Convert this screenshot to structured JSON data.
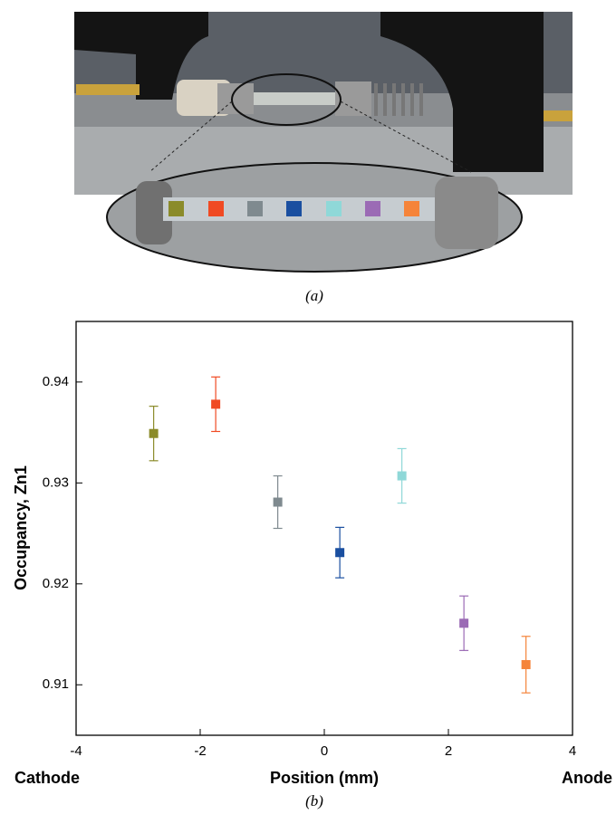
{
  "figure": {
    "panel_a": "(a)"
  },
  "chart_data": {
    "type": "scatter",
    "caption": "(b)",
    "x_label": "Position (mm)",
    "y_label": "Occupancy, Zn1",
    "annotations": [
      "Cathode",
      "Anode"
    ],
    "x": [
      -2.75,
      -1.75,
      -0.75,
      0.25,
      1.25,
      2.25,
      3.25
    ],
    "values": [
      0.9349,
      0.9378,
      0.9281,
      0.9231,
      0.9307,
      0.9161,
      0.912
    ],
    "errors": [
      0.0027,
      0.0027,
      0.0026,
      0.0025,
      0.0027,
      0.0027,
      0.0028
    ],
    "colors": [
      "#8b8b2a",
      "#f04a23",
      "#7f8a8f",
      "#1a4fa0",
      "#8fd8d8",
      "#9b6bb5",
      "#f5843a"
    ],
    "xlim": [
      -4,
      4
    ],
    "xticks": [
      -4,
      -2,
      0,
      2,
      4
    ],
    "ylim": [
      0.905,
      0.946
    ],
    "yticks": [
      0.91,
      0.92,
      0.93,
      0.94
    ],
    "grid": false
  }
}
